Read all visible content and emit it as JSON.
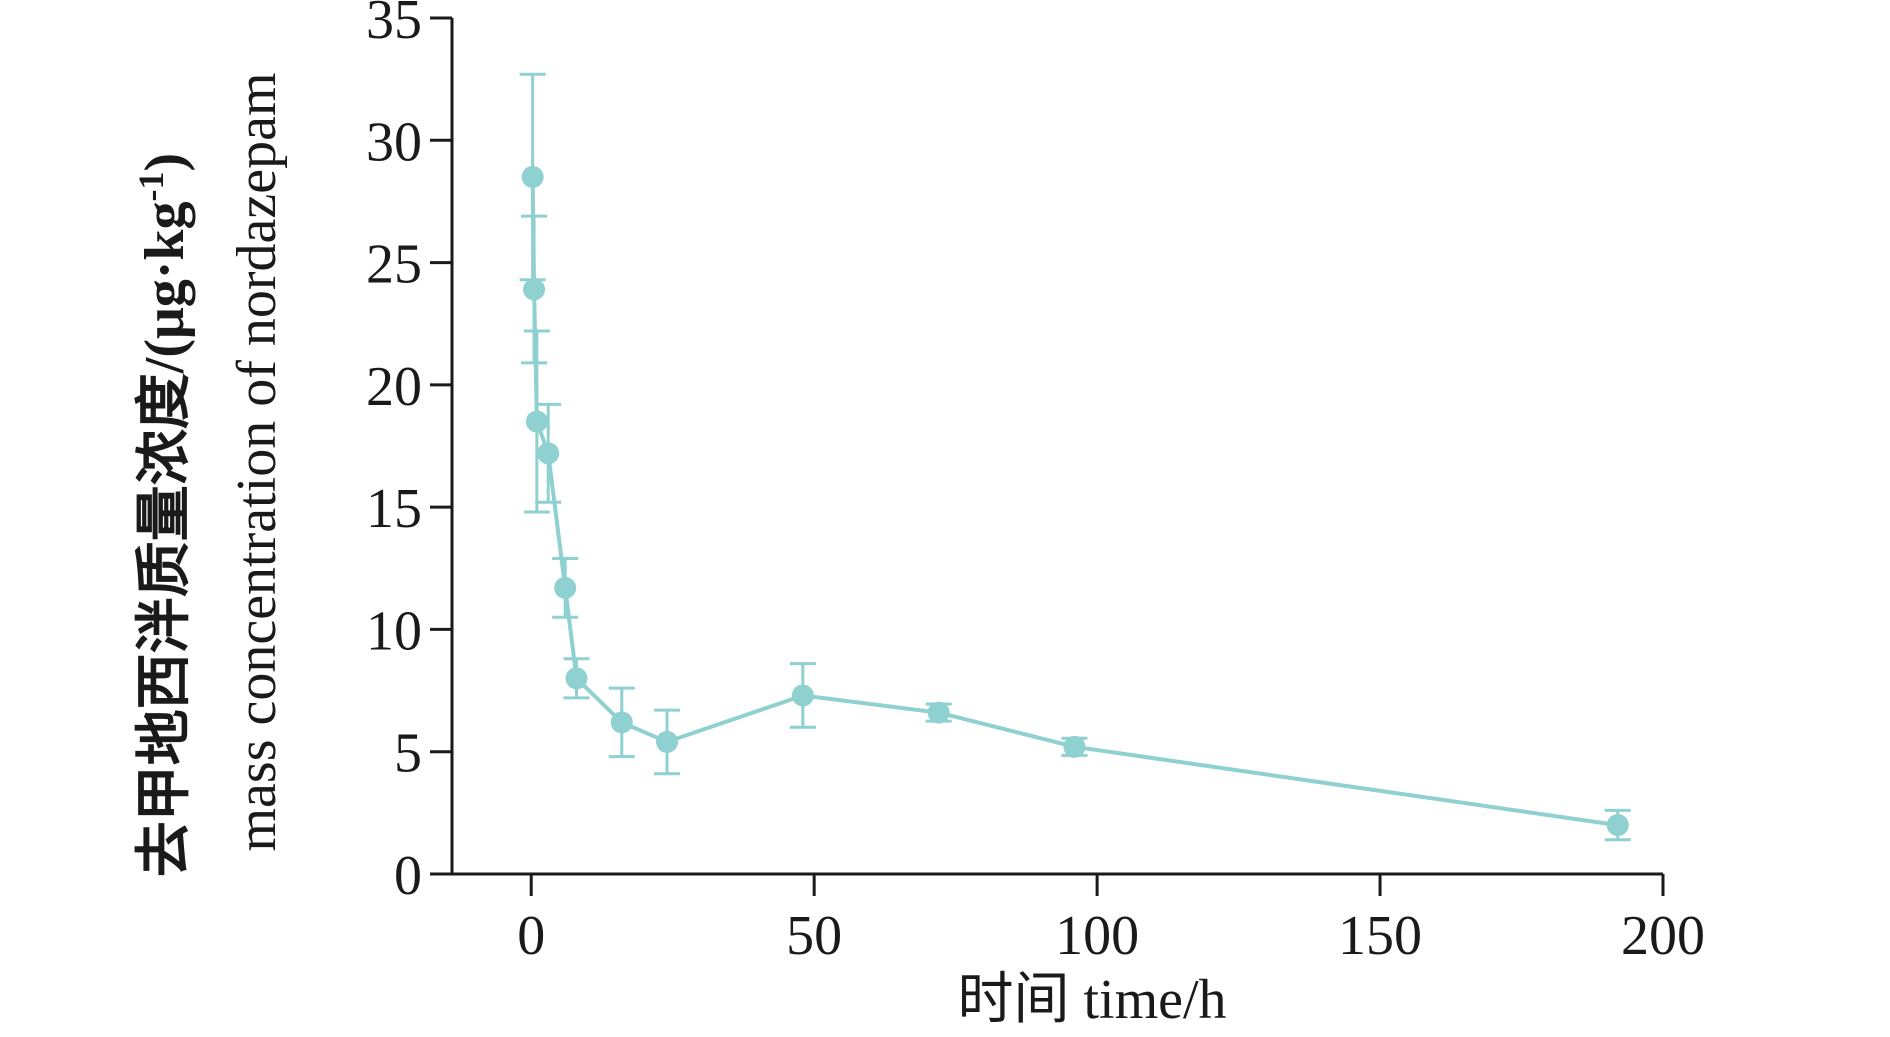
{
  "colors": {
    "series": "#8fd0d0",
    "axis": "#1a1a1a",
    "background": "#ffffff"
  },
  "chart_data": {
    "type": "line",
    "title": "",
    "xlabel": "时间 time/h",
    "ylabel_cn": "去甲地西泮质量浓度/(μg·kg",
    "ylabel_sup": "-1",
    "ylabel_close": ")",
    "ylabel_en": "mass concentration of nordazepam",
    "xlim": [
      -14,
      200
    ],
    "ylim": [
      0,
      35
    ],
    "xticks": [
      0,
      50,
      100,
      150,
      200
    ],
    "yticks": [
      0,
      5,
      10,
      15,
      20,
      25,
      30,
      35
    ],
    "xtick_labels": [
      "0",
      "50",
      "100",
      "150",
      "200"
    ],
    "ytick_labels": [
      "0",
      "5",
      "10",
      "15",
      "20",
      "25",
      "30",
      "35"
    ],
    "grid": false,
    "legend": "none",
    "series": [
      {
        "x": [
          0.25,
          0.5,
          1,
          3,
          6,
          8,
          16,
          24,
          48,
          72,
          96,
          192
        ],
        "y": [
          28.5,
          23.9,
          18.5,
          17.2,
          11.7,
          8.0,
          6.2,
          5.4,
          7.3,
          6.6,
          5.2,
          2.0
        ],
        "yerr": [
          4.2,
          3.0,
          3.7,
          2.0,
          1.2,
          0.8,
          1.4,
          1.3,
          1.3,
          0.35,
          0.35,
          0.6
        ]
      }
    ]
  }
}
